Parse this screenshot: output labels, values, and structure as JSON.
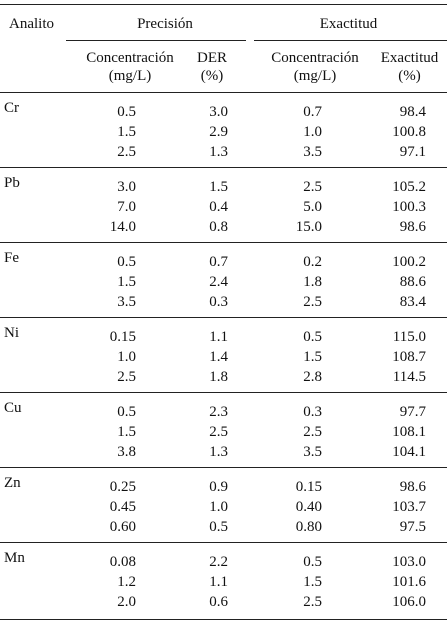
{
  "header": {
    "analito": "Analito",
    "precision": "Precisión",
    "exactitud": "Exactitud",
    "conc1_line1": "Concentración",
    "conc1_line2": "(mg/L)",
    "der_line1": "DER",
    "der_line2": "(%)",
    "conc2_line1": "Concentración",
    "conc2_line2": "(mg/L)",
    "exact_line1": "Exactitud",
    "exact_line2": "(%)"
  },
  "groups": [
    {
      "analito": "Cr",
      "rows": [
        {
          "pc": "0.5",
          "der": "3.0",
          "ec": "0.7",
          "ex": "98.4"
        },
        {
          "pc": "1.5",
          "der": "2.9",
          "ec": "1.0",
          "ex": "100.8"
        },
        {
          "pc": "2.5",
          "der": "1.3",
          "ec": "3.5",
          "ex": "97.1"
        }
      ]
    },
    {
      "analito": "Pb",
      "rows": [
        {
          "pc": "3.0",
          "der": "1.5",
          "ec": "2.5",
          "ex": "105.2"
        },
        {
          "pc": "7.0",
          "der": "0.4",
          "ec": "5.0",
          "ex": "100.3"
        },
        {
          "pc": "14.0",
          "der": "0.8",
          "ec": "15.0",
          "ex": "98.6"
        }
      ]
    },
    {
      "analito": "Fe",
      "rows": [
        {
          "pc": "0.5",
          "der": "0.7",
          "ec": "0.2",
          "ex": "100.2"
        },
        {
          "pc": "1.5",
          "der": "2.4",
          "ec": "1.8",
          "ex": "88.6"
        },
        {
          "pc": "3.5",
          "der": "0.3",
          "ec": "2.5",
          "ex": "83.4"
        }
      ]
    },
    {
      "analito": "Ni",
      "rows": [
        {
          "pc": "0.15",
          "der": "1.1",
          "ec": "0.5",
          "ex": "115.0"
        },
        {
          "pc": "1.0",
          "der": "1.4",
          "ec": "1.5",
          "ex": "108.7"
        },
        {
          "pc": "2.5",
          "der": "1.8",
          "ec": "2.8",
          "ex": "114.5"
        }
      ]
    },
    {
      "analito": "Cu",
      "rows": [
        {
          "pc": "0.5",
          "der": "2.3",
          "ec": "0.3",
          "ex": "97.7"
        },
        {
          "pc": "1.5",
          "der": "2.5",
          "ec": "2.5",
          "ex": "108.1"
        },
        {
          "pc": "3.8",
          "der": "1.3",
          "ec": "3.5",
          "ex": "104.1"
        }
      ]
    },
    {
      "analito": "Zn",
      "rows": [
        {
          "pc": "0.25",
          "der": "0.9",
          "ec": "0.15",
          "ex": "98.6"
        },
        {
          "pc": "0.45",
          "der": "1.0",
          "ec": "0.40",
          "ex": "103.7"
        },
        {
          "pc": "0.60",
          "der": "0.5",
          "ec": "0.80",
          "ex": "97.5"
        }
      ]
    },
    {
      "analito": "Mn",
      "rows": [
        {
          "pc": "0.08",
          "der": "2.2",
          "ec": "0.5",
          "ex": "103.0"
        },
        {
          "pc": "1.2",
          "der": "1.1",
          "ec": "1.5",
          "ex": "101.6"
        },
        {
          "pc": "2.0",
          "der": "0.6",
          "ec": "2.5",
          "ex": "106.0"
        }
      ]
    }
  ]
}
